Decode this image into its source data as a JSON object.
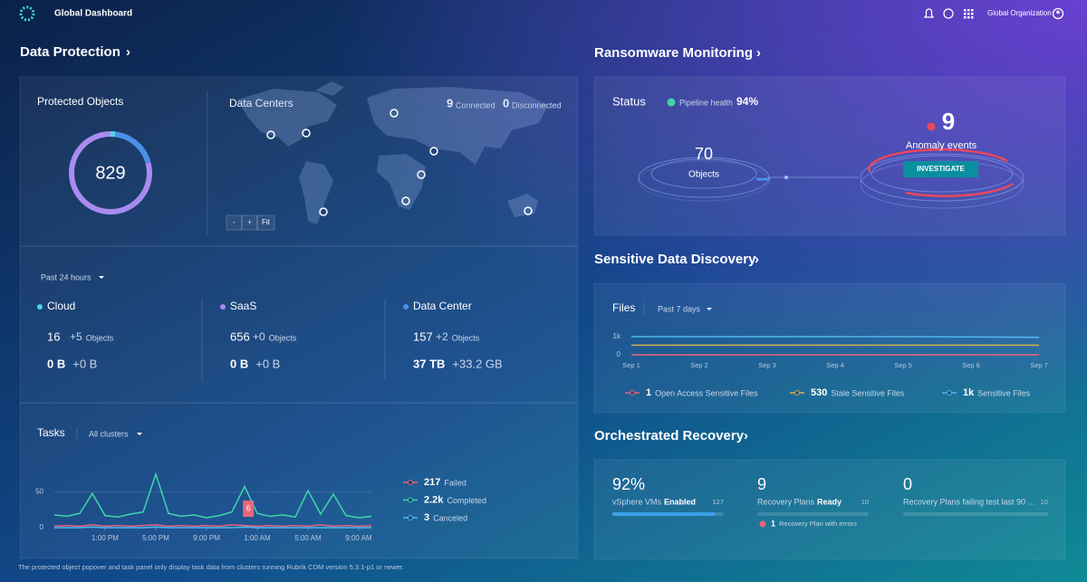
{
  "header": {
    "title": "Global Dashboard",
    "org": "Global Organization"
  },
  "data_protection": {
    "title": "Data Protection",
    "protected_objects": {
      "label": "Protected Objects",
      "value": 829
    },
    "data_centers": {
      "label": "Data Centers",
      "connected_count": 9,
      "connected_label": "Connected",
      "disconnected_count": 0,
      "disconnected_label": "Disconnected",
      "zoom": [
        "-",
        "+",
        "Fit"
      ]
    },
    "period": "Past 24 hours",
    "columns": [
      {
        "name": "Cloud",
        "color": "#4fd3e8",
        "objects": 16,
        "objects_delta": "+5",
        "objects_unit": "Objects",
        "size": "0 B",
        "size_delta": "+0 B"
      },
      {
        "name": "SaaS",
        "color": "#a98bf0",
        "objects": 656,
        "objects_delta": "+0",
        "objects_unit": "Objects",
        "size": "0 B",
        "size_delta": "+0 B"
      },
      {
        "name": "Data Center",
        "color": "#4a90e8",
        "objects": 157,
        "objects_delta": "+2",
        "objects_unit": "Objects",
        "size": "37 TB",
        "size_delta": "+33.2 GB"
      }
    ]
  },
  "tasks": {
    "title": "Tasks",
    "filter": "All clusters",
    "chart": {
      "type": "line",
      "ylim": [
        0,
        80
      ],
      "yticks": [
        0,
        50
      ],
      "xlim": [
        0,
        25
      ],
      "xticks": [
        {
          "value": 4,
          "label": "1:00 PM"
        },
        {
          "value": 8,
          "label": "5:00 PM"
        },
        {
          "value": 12,
          "label": "9:00 PM"
        },
        {
          "value": 16,
          "label": "1:00 AM"
        },
        {
          "value": 20,
          "label": "5:00 AM"
        },
        {
          "value": 24,
          "label": "9:00 AM"
        }
      ],
      "x": [
        0,
        1,
        2,
        3,
        4,
        5,
        6,
        7,
        8,
        9,
        10,
        11,
        12,
        13,
        14,
        15,
        16,
        17,
        18,
        19,
        20,
        21,
        22,
        23,
        24,
        25
      ],
      "series": [
        {
          "name": "Failed",
          "count": "217",
          "color": "#e8657a",
          "values": [
            2,
            3,
            2,
            4,
            2,
            3,
            2,
            3,
            4,
            2,
            3,
            2,
            3,
            2,
            4,
            3,
            2,
            3,
            2,
            3,
            2,
            4,
            2,
            3,
            2,
            3
          ]
        },
        {
          "name": "Completed",
          "count": "2.2k",
          "color": "#3fd6a8",
          "values": [
            18,
            16,
            20,
            48,
            17,
            15,
            19,
            22,
            75,
            20,
            16,
            18,
            14,
            17,
            22,
            58,
            20,
            16,
            18,
            15,
            52,
            19,
            47,
            17,
            14,
            16
          ]
        },
        {
          "name": "Canceled",
          "count": "3",
          "color": "#4fb8f0",
          "values": [
            0,
            0,
            0,
            1,
            0,
            0,
            0,
            0,
            1,
            0,
            0,
            0,
            0,
            0,
            0,
            1,
            0,
            0,
            0,
            0,
            0,
            0,
            0,
            0,
            0,
            0
          ]
        }
      ],
      "annotation": {
        "x": 15.3,
        "label": "6"
      }
    }
  },
  "footnote": "The protected object popover and task panel only display task data from clusters running Rubrik CDM version 5.3.1-p1 or newer.",
  "ransomware": {
    "title": "Ransomware Monitoring",
    "status": "Status",
    "pipeline_label": "Pipeline health",
    "pipeline_value": "94%",
    "objects_value": "70",
    "objects_label": "Objects",
    "anomaly_count": "9",
    "anomaly_label": "Anomaly events",
    "button": "INVESTIGATE"
  },
  "sensitive": {
    "title": "Sensitive Data Discovery",
    "files": "Files",
    "period": "Past 7 days",
    "chart": {
      "type": "line",
      "ylim": [
        0,
        1000
      ],
      "yticks": [
        0,
        {
          "value": 1000,
          "label": "1k"
        }
      ],
      "categories": [
        "Sep 1",
        "Sep 2",
        "Sep 3",
        "Sep 4",
        "Sep 5",
        "Sep 6",
        "Sep 7"
      ],
      "series": [
        {
          "name": "Open Access Sensitive Files",
          "count": "1",
          "color": "#e8657a",
          "values": [
            1,
            1,
            1,
            1,
            1,
            1,
            1
          ]
        },
        {
          "name": "Stale Sensitive Files",
          "count": "530",
          "color": "#d8b050",
          "values": [
            530,
            530,
            530,
            530,
            530,
            530,
            530
          ]
        },
        {
          "name": "Sensitive Files",
          "count": "1k",
          "color": "#4fb8f0",
          "values": [
            1000,
            1000,
            1000,
            1000,
            1000,
            990,
            960
          ]
        }
      ]
    }
  },
  "recovery": {
    "title": "Orchestrated Recovery",
    "items": [
      {
        "value": 92,
        "value_label": "92%",
        "label": "vSphere VMs",
        "label_bold": "Enabled",
        "total": "127"
      },
      {
        "value": 9,
        "label": "Recovery Plans",
        "label_bold": "Ready",
        "total": "10",
        "error_count": "1",
        "error_label": "Recovery Plan with errors"
      },
      {
        "value": 0,
        "label": "Recovery Plans failing test last 90 ...",
        "total": "10"
      }
    ]
  }
}
